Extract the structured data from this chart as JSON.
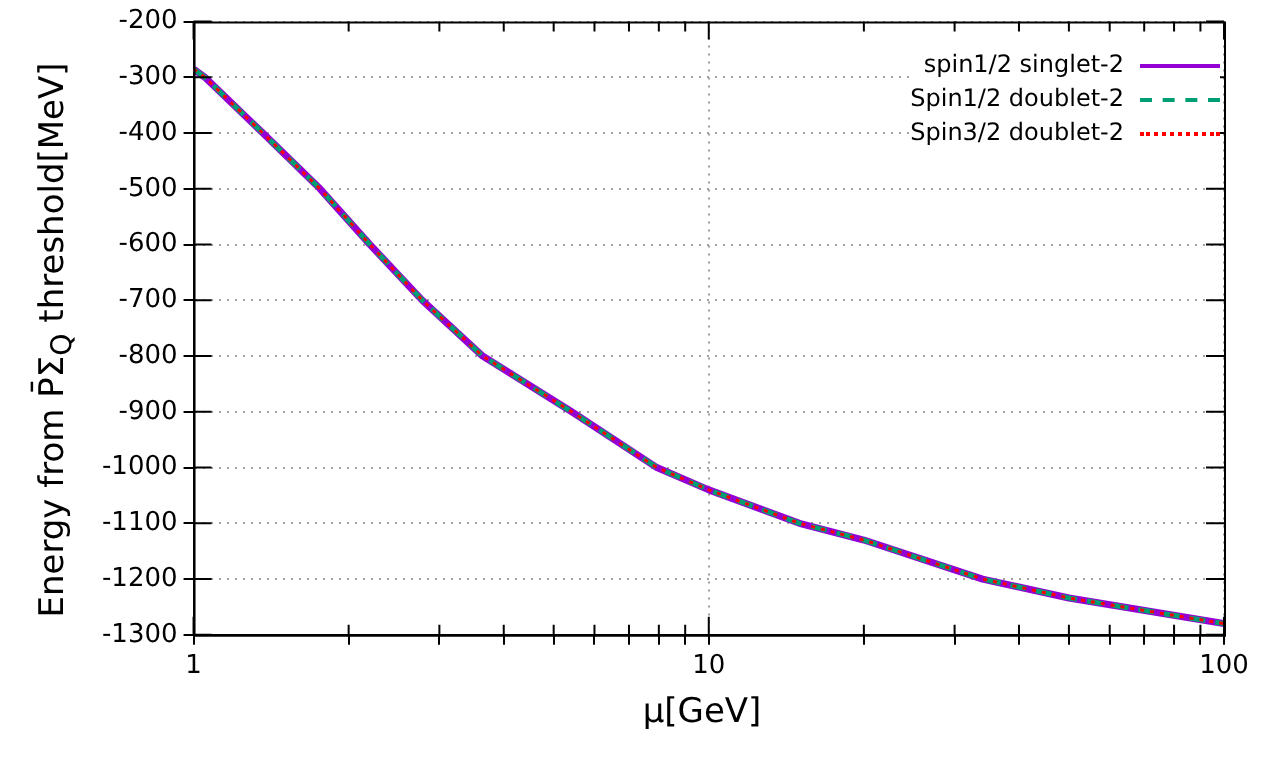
{
  "chart_data": {
    "type": "line",
    "xlabel": "μ[GeV]",
    "ylabel": "Energy from P̄Σ$_{Q}$ threshold[MeV]",
    "x": [
      1,
      1.052,
      1.363,
      1.76,
      2.2,
      2.78,
      3.64,
      5.42,
      7.93,
      10,
      15,
      20,
      34,
      50,
      100
    ],
    "series": [
      {
        "name": "spin1/2 singlet-2",
        "color": "#9400d3",
        "line_style": "solid",
        "values": [
          -285,
          -300,
          -400,
          -500,
          -600,
          -700,
          -800,
          -900,
          -1000,
          -1040,
          -1100,
          -1130,
          -1200,
          -1234,
          -1280
        ]
      },
      {
        "name": "Spin1/2 doublet-2",
        "color": "#009e73",
        "line_style": "dashed",
        "values": [
          -285,
          -300,
          -400,
          -500,
          -600,
          -700,
          -800,
          -900,
          -1000,
          -1040,
          -1100,
          -1130,
          -1200,
          -1234,
          -1280
        ]
      },
      {
        "name": "Spin3/2 doublet-2",
        "color": "#ff0000",
        "line_style": "dotted",
        "values": [
          -285,
          -300,
          -400,
          -500,
          -600,
          -700,
          -800,
          -900,
          -1000,
          -1040,
          -1100,
          -1130,
          -1200,
          -1234,
          -1280
        ]
      }
    ],
    "log": "x",
    "xlim": [
      1,
      100
    ],
    "xticks": [
      1,
      {
        "value": 2,
        "label": null
      },
      {
        "value": 3,
        "label": null
      },
      {
        "value": 4,
        "label": null
      },
      {
        "value": 5,
        "label": null
      },
      {
        "value": 6,
        "label": null
      },
      {
        "value": 7,
        "label": null
      },
      {
        "value": 8,
        "label": null
      },
      {
        "value": 9,
        "label": null
      },
      10,
      {
        "value": 20,
        "label": null
      },
      {
        "value": 30,
        "label": null
      },
      {
        "value": 40,
        "label": null
      },
      {
        "value": 50,
        "label": null
      },
      {
        "value": 60,
        "label": null
      },
      {
        "value": 70,
        "label": null
      },
      {
        "value": 80,
        "label": null
      },
      {
        "value": 90,
        "label": null
      },
      100
    ],
    "ylim": [
      -1300,
      -200
    ],
    "yticks": [
      -1300,
      -1200,
      -1100,
      -1000,
      -900,
      -800,
      -700,
      -600,
      -500,
      -400,
      -300,
      -200
    ],
    "grid": true,
    "legend": "top right",
    "marker": "none"
  }
}
